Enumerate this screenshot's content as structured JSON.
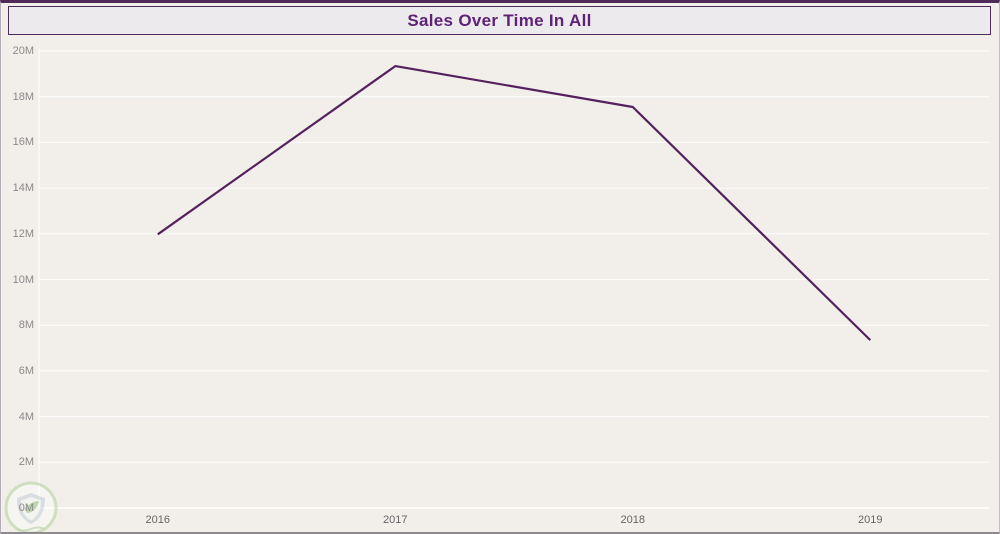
{
  "header": {
    "title": "Sales Over Time In All"
  },
  "icons": {
    "watermark": "shield-leaf-logo"
  },
  "colors": {
    "window_bg": "#f2efeb",
    "title_bar_bg": "#edeaee",
    "title_border": "#4f2a5c",
    "title_text": "#5e2374",
    "line": "#54215e",
    "gridline": "rgba(255,255,255,0.85)",
    "axis_line": "rgba(255,255,255,0.95)",
    "y_tick_text": "#8a8a8a",
    "x_tick_text": "#666666"
  },
  "chart_data": {
    "type": "line",
    "title": "Sales Over Time In All",
    "categories": [
      "2016",
      "2017",
      "2018",
      "2019"
    ],
    "series": [
      {
        "name": "Sales",
        "values_millions": [
          11.98,
          19.34,
          17.55,
          7.35
        ]
      }
    ],
    "xlabel": "",
    "ylabel": "",
    "ylim_millions": [
      0,
      20
    ],
    "y_tick_step_millions": 2,
    "y_tick_labels": [
      "0M",
      "2M",
      "4M",
      "6M",
      "8M",
      "10M",
      "12M",
      "14M",
      "16M",
      "18M",
      "20M"
    ],
    "grid": true,
    "legend_position": "none",
    "line_color": "#54215e"
  }
}
